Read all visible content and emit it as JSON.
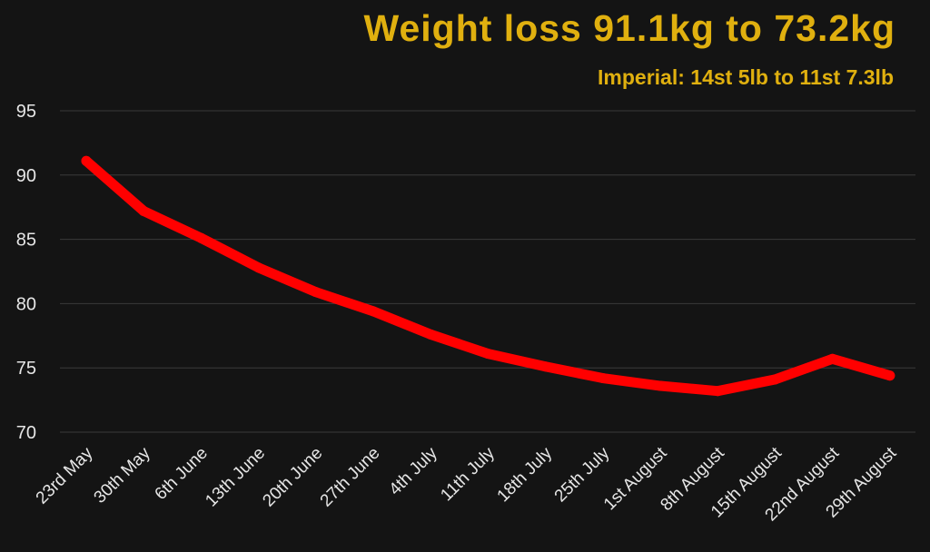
{
  "title": "Weight loss 91.1kg to 73.2kg",
  "subtitle": "Imperial: 14st 5lb to 11st 7.3lb",
  "colors": {
    "background": "#141414",
    "title": "#e0b00f",
    "line": "#ff0000",
    "grid": "#3a3a3a",
    "ticks": "#e6e6e6"
  },
  "chart_data": {
    "type": "line",
    "categories": [
      "23rd May",
      "30th May",
      "6th June",
      "13th June",
      "20th June",
      "27th June",
      "4th July",
      "11th July",
      "18th July",
      "25th July",
      "1st August",
      "8th August",
      "15th August",
      "22nd August",
      "29th August"
    ],
    "series": [
      {
        "values": [
          91.1,
          87.2,
          85.1,
          82.8,
          80.9,
          79.4,
          77.6,
          76.1,
          75.1,
          74.2,
          73.6,
          73.2,
          74.1,
          75.7,
          74.4
        ]
      }
    ],
    "yticks": [
      70,
      75,
      80,
      85,
      90,
      95
    ],
    "ylim": [
      70,
      95
    ],
    "grid": true,
    "legend": "none"
  }
}
